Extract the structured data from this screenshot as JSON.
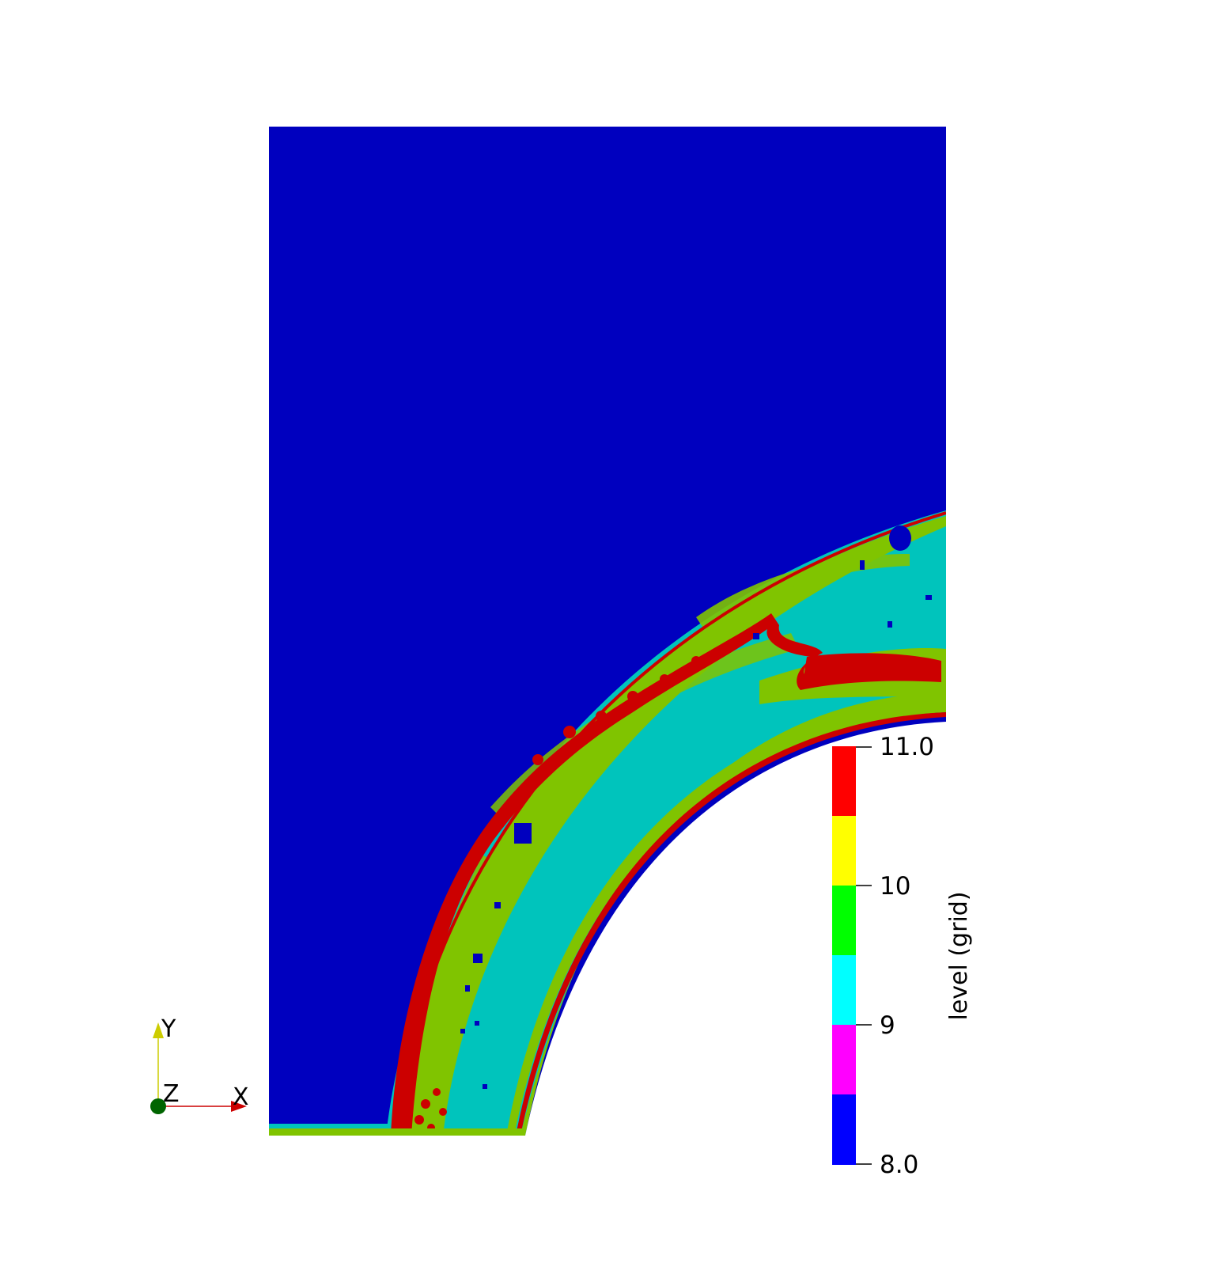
{
  "colors": {
    "background": "#ffffff",
    "level_8": "#0000ff",
    "level_8_5": "#ff00ff",
    "level_9": "#00ffff",
    "level_9_5": "#00ff00",
    "level_10": "#ffff00",
    "level_10_5": "#ff0000",
    "domain_base": "#0000bf",
    "region_teal": "#00c4bc",
    "region_olive": "#80c400",
    "region_red": "#cc0000",
    "axis_x": "#cc0000",
    "axis_y": "#cccc00",
    "axis_z": "#006400"
  },
  "color_legend": {
    "title": "level (grid)",
    "labels": {
      "max": "11.0",
      "mid_high": "10",
      "mid_low": "9",
      "min": "8.0"
    },
    "range": [
      8.0,
      11.0
    ],
    "bands": 6
  },
  "orientation_axes": {
    "x_label": "X",
    "y_label": "Y",
    "z_label": "Z"
  }
}
